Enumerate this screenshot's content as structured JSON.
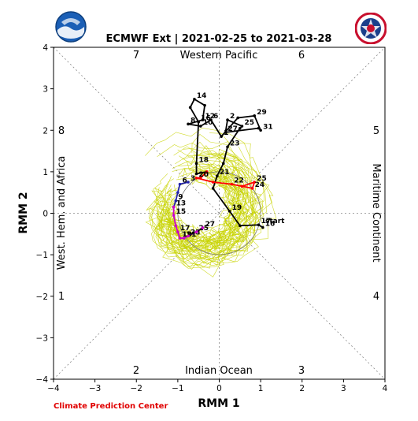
{
  "chart_data": {
    "type": "line",
    "title": "ECMWF Ext | 2021-02-25 to 2021-03-28",
    "xlabel": "RMM 1",
    "ylabel": "RMM 2",
    "xlim": [
      -4,
      4
    ],
    "ylim": [
      -4,
      4
    ],
    "xticks": [
      -4,
      -3,
      -2,
      -1,
      0,
      1,
      2,
      3,
      4
    ],
    "yticks": [
      -4,
      -3,
      -2,
      -1,
      0,
      1,
      2,
      3,
      4
    ],
    "phase_numbers": [
      "1",
      "2",
      "3",
      "4",
      "5",
      "6",
      "7",
      "8"
    ],
    "region_labels": {
      "top": "Western Pacific",
      "bottom": "Indian Ocean",
      "left": "West. Hem. and Africa",
      "right": "Maritime Continent"
    },
    "unit_circle_radius": 1,
    "start_label": "start",
    "ensemble_note": "light yellow-green lines = ensemble members",
    "series": [
      {
        "color": "#000000",
        "points": [
          {
            "x": 1.05,
            "y": -0.34,
            "label": "16"
          },
          {
            "x": 0.95,
            "y": -0.28,
            "label": "17"
          },
          {
            "x": 0.5,
            "y": -0.3,
            "label": ""
          },
          {
            "x": 0.25,
            "y": 0.05,
            "label": "19"
          },
          {
            "x": -0.15,
            "y": 0.6,
            "label": ""
          },
          {
            "x": -0.05,
            "y": 0.9,
            "label": "21"
          },
          {
            "x": 0.1,
            "y": 1.2,
            "label": ""
          },
          {
            "x": 0.2,
            "y": 1.6,
            "label": "23"
          },
          {
            "x": 0.5,
            "y": 2.05,
            "label": ""
          },
          {
            "x": 0.55,
            "y": 2.1,
            "label": "25"
          },
          {
            "x": 0.2,
            "y": 2.25,
            "label": "2"
          },
          {
            "x": 0.15,
            "y": 1.95,
            "label": "27"
          },
          {
            "x": 0.95,
            "y": 2.05,
            "label": ""
          },
          {
            "x": 1.0,
            "y": 2.0,
            "label": "31"
          },
          {
            "x": 0.85,
            "y": 2.35,
            "label": "29"
          },
          {
            "x": 0.45,
            "y": 2.3,
            "label": ""
          },
          {
            "x": 0.05,
            "y": 1.85,
            "label": "1"
          },
          {
            "x": -0.2,
            "y": 2.25,
            "label": "6"
          },
          {
            "x": -0.45,
            "y": 2.1,
            "label": "10"
          },
          {
            "x": -0.75,
            "y": 2.15,
            "label": "8"
          },
          {
            "x": -0.4,
            "y": 2.25,
            "label": "12"
          },
          {
            "x": -0.35,
            "y": 2.6,
            "label": ""
          },
          {
            "x": -0.6,
            "y": 2.75,
            "label": "14"
          },
          {
            "x": -0.7,
            "y": 2.55,
            "label": ""
          },
          {
            "x": -0.5,
            "y": 2.2,
            "label": "16"
          },
          {
            "x": -0.55,
            "y": 1.2,
            "label": "18"
          },
          {
            "x": -0.55,
            "y": 0.95,
            "label": ""
          },
          {
            "x": -0.3,
            "y": 1.0,
            "label": ""
          }
        ]
      },
      {
        "color": "#ff0000",
        "points": [
          {
            "x": -0.3,
            "y": 1.0,
            "label": ""
          },
          {
            "x": -0.45,
            "y": 0.85,
            "label": ""
          },
          {
            "x": -0.55,
            "y": 0.85,
            "label": "20"
          },
          {
            "x": -0.15,
            "y": 0.75,
            "label": ""
          },
          {
            "x": 0.3,
            "y": 0.7,
            "label": "22"
          },
          {
            "x": 0.55,
            "y": 0.65,
            "label": ""
          },
          {
            "x": 0.85,
            "y": 0.75,
            "label": "25"
          },
          {
            "x": 0.8,
            "y": 0.6,
            "label": "24"
          },
          {
            "x": 0.55,
            "y": 0.65,
            "label": ""
          }
        ]
      },
      {
        "color": "#2222aa",
        "points": [
          {
            "x": -0.75,
            "y": 0.75,
            "label": "3"
          },
          {
            "x": -0.95,
            "y": 0.7,
            "label": "6"
          },
          {
            "x": -1.0,
            "y": 0.5,
            "label": ""
          },
          {
            "x": -1.05,
            "y": 0.3,
            "label": "9"
          },
          {
            "x": -1.1,
            "y": 0.15,
            "label": ""
          }
        ]
      },
      {
        "color": "#cc00cc",
        "points": [
          {
            "x": -1.1,
            "y": 0.15,
            "label": "13"
          },
          {
            "x": -1.1,
            "y": -0.05,
            "label": "15"
          },
          {
            "x": -1.05,
            "y": -0.3,
            "label": ""
          },
          {
            "x": -1.0,
            "y": -0.45,
            "label": "17"
          },
          {
            "x": -0.95,
            "y": -0.6,
            "label": "19"
          },
          {
            "x": -0.85,
            "y": -0.6,
            "label": "21"
          },
          {
            "x": -0.75,
            "y": -0.55,
            "label": "23"
          },
          {
            "x": -0.55,
            "y": -0.45,
            "label": "25"
          },
          {
            "x": -0.4,
            "y": -0.35,
            "label": "27"
          }
        ]
      }
    ]
  },
  "footer": {
    "credit": "Climate Prediction Center"
  },
  "logos": {
    "left": "noaa-logo",
    "right": "national-weather-service-logo"
  }
}
